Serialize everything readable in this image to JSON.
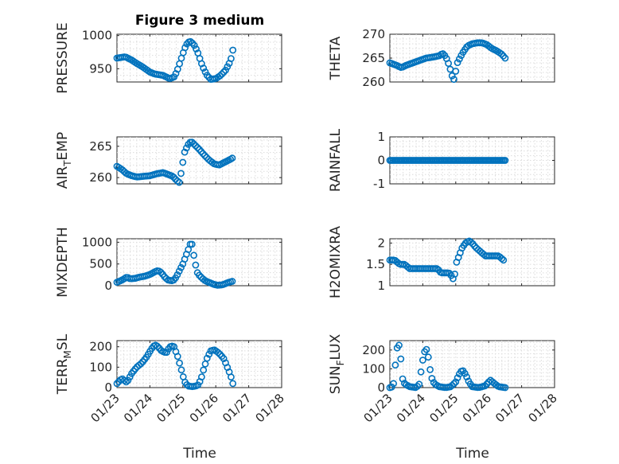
{
  "figure_title": "Figure 3 medium",
  "colors": {
    "marker": "#0072BD",
    "axis": "#262626",
    "grid": "#dcdcdc"
  },
  "chart_data": [
    {
      "type": "scatter",
      "id": "pressure",
      "ylabel": "PRESSURE",
      "ylim": [
        930,
        1002
      ],
      "yticks": [
        950,
        1000
      ],
      "ytick_labels": [
        "950",
        "1000"
      ],
      "xlim": [
        0,
        5
      ],
      "xticks": [
        0,
        1,
        2,
        3,
        4,
        5
      ],
      "xtick_labels": [],
      "curve": [
        [
          0.0,
          966
        ],
        [
          0.25,
          968
        ],
        [
          0.45,
          963
        ],
        [
          0.6,
          958
        ],
        [
          0.8,
          952
        ],
        [
          1.0,
          945
        ],
        [
          1.15,
          942
        ],
        [
          1.4,
          940
        ],
        [
          1.6,
          935
        ],
        [
          1.75,
          938
        ],
        [
          1.85,
          950
        ],
        [
          1.95,
          965
        ],
        [
          2.05,
          980
        ],
        [
          2.15,
          990
        ],
        [
          2.25,
          991
        ],
        [
          2.35,
          985
        ],
        [
          2.45,
          975
        ],
        [
          2.55,
          960
        ],
        [
          2.65,
          948
        ],
        [
          2.75,
          939
        ],
        [
          2.85,
          934
        ],
        [
          3.0,
          935
        ],
        [
          3.15,
          940
        ],
        [
          3.3,
          948
        ],
        [
          3.45,
          962
        ],
        [
          3.52,
          978
        ]
      ]
    },
    {
      "type": "scatter",
      "id": "theta",
      "ylabel": "THETA",
      "ylim": [
        260,
        270
      ],
      "yticks": [
        260,
        265,
        270
      ],
      "ytick_labels": [
        "260",
        "265",
        "270"
      ],
      "xlim": [
        0,
        5
      ],
      "xticks": [
        0,
        1,
        2,
        3,
        4,
        5
      ],
      "xtick_labels": [],
      "curve": [
        [
          0.0,
          264
        ],
        [
          0.2,
          263.5
        ],
        [
          0.35,
          263
        ],
        [
          0.5,
          263.5
        ],
        [
          0.7,
          264
        ],
        [
          0.9,
          264.5
        ],
        [
          1.1,
          265
        ],
        [
          1.3,
          265.2
        ],
        [
          1.5,
          265.5
        ],
        [
          1.6,
          266
        ],
        [
          1.7,
          265.3
        ],
        [
          1.8,
          263.5
        ],
        [
          1.9,
          261
        ],
        [
          1.95,
          260.5
        ],
        [
          2.05,
          264
        ],
        [
          2.2,
          266
        ],
        [
          2.35,
          267.5
        ],
        [
          2.5,
          268
        ],
        [
          2.65,
          268.2
        ],
        [
          2.8,
          268.2
        ],
        [
          2.95,
          267.8
        ],
        [
          3.1,
          267
        ],
        [
          3.25,
          266.5
        ],
        [
          3.4,
          265.8
        ],
        [
          3.5,
          265
        ]
      ]
    },
    {
      "type": "scatter",
      "id": "air_temp",
      "ylabel": "AIR_TEMP",
      "ylim": [
        259,
        266.5
      ],
      "yticks": [
        260,
        265
      ],
      "ytick_labels": [
        "260",
        "265"
      ],
      "xlim": [
        0,
        5
      ],
      "xticks": [
        0,
        1,
        2,
        3,
        4,
        5
      ],
      "xtick_labels": [],
      "curve": [
        [
          0.0,
          261.8
        ],
        [
          0.15,
          261.3
        ],
        [
          0.3,
          260.6
        ],
        [
          0.45,
          260.3
        ],
        [
          0.6,
          260.1
        ],
        [
          0.8,
          260.2
        ],
        [
          1.0,
          260.3
        ],
        [
          1.2,
          260.6
        ],
        [
          1.4,
          260.8
        ],
        [
          1.55,
          260.5
        ],
        [
          1.7,
          260.2
        ],
        [
          1.8,
          259.6
        ],
        [
          1.9,
          259.2
        ],
        [
          1.97,
          261.5
        ],
        [
          2.05,
          264
        ],
        [
          2.15,
          265.2
        ],
        [
          2.25,
          265.8
        ],
        [
          2.35,
          265.3
        ],
        [
          2.5,
          264.5
        ],
        [
          2.65,
          263.6
        ],
        [
          2.8,
          262.8
        ],
        [
          2.95,
          262.2
        ],
        [
          3.1,
          262
        ],
        [
          3.25,
          262.4
        ],
        [
          3.4,
          262.8
        ],
        [
          3.5,
          263.1
        ]
      ]
    },
    {
      "type": "scatter",
      "id": "rainfall",
      "ylabel": "RAINFALL",
      "ylim": [
        -1,
        1
      ],
      "yticks": [
        -1,
        0,
        1
      ],
      "ytick_labels": [
        "-1",
        "0",
        "1"
      ],
      "xlim": [
        0,
        5
      ],
      "xticks": [
        0,
        1,
        2,
        3,
        4,
        5
      ],
      "xtick_labels": [],
      "curve": [
        [
          0.0,
          0
        ],
        [
          3.5,
          0
        ]
      ]
    },
    {
      "type": "scatter",
      "id": "mixdepth",
      "ylabel": "MIXDEPTH",
      "ylim": [
        0,
        1080
      ],
      "yticks": [
        0,
        500,
        1000
      ],
      "ytick_labels": [
        "0",
        "500",
        "1000"
      ],
      "xlim": [
        0,
        5
      ],
      "xticks": [
        0,
        1,
        2,
        3,
        4,
        5
      ],
      "xtick_labels": [],
      "curve": [
        [
          0.0,
          80
        ],
        [
          0.1,
          110
        ],
        [
          0.2,
          150
        ],
        [
          0.3,
          200
        ],
        [
          0.4,
          160
        ],
        [
          0.55,
          170
        ],
        [
          0.7,
          200
        ],
        [
          0.85,
          220
        ],
        [
          1.0,
          260
        ],
        [
          1.15,
          320
        ],
        [
          1.25,
          350
        ],
        [
          1.35,
          300
        ],
        [
          1.45,
          200
        ],
        [
          1.55,
          130
        ],
        [
          1.7,
          110
        ],
        [
          1.8,
          200
        ],
        [
          1.9,
          350
        ],
        [
          2.0,
          500
        ],
        [
          2.1,
          700
        ],
        [
          2.2,
          900
        ],
        [
          2.25,
          1020
        ],
        [
          2.3,
          900
        ],
        [
          2.35,
          600
        ],
        [
          2.45,
          280
        ],
        [
          2.55,
          200
        ],
        [
          2.65,
          130
        ],
        [
          2.75,
          90
        ],
        [
          2.85,
          60
        ],
        [
          2.95,
          30
        ],
        [
          3.05,
          10
        ],
        [
          3.2,
          20
        ],
        [
          3.3,
          50
        ],
        [
          3.4,
          80
        ],
        [
          3.5,
          100
        ]
      ]
    },
    {
      "type": "scatter",
      "id": "h2omixra",
      "ylabel": "H2OMIXRA",
      "ylim": [
        1,
        2.1
      ],
      "yticks": [
        1,
        1.5,
        2
      ],
      "ytick_labels": [
        "1",
        "1.5",
        "2"
      ],
      "xlim": [
        0,
        5
      ],
      "xticks": [
        0,
        1,
        2,
        3,
        4,
        5
      ],
      "xtick_labels": [],
      "curve": [
        [
          0.0,
          1.6
        ],
        [
          0.15,
          1.6
        ],
        [
          0.3,
          1.5
        ],
        [
          0.45,
          1.5
        ],
        [
          0.6,
          1.4
        ],
        [
          0.9,
          1.4
        ],
        [
          1.2,
          1.4
        ],
        [
          1.45,
          1.4
        ],
        [
          1.55,
          1.3
        ],
        [
          1.8,
          1.3
        ],
        [
          1.9,
          1.2
        ],
        [
          1.95,
          1.1
        ],
        [
          2.0,
          1.5
        ],
        [
          2.1,
          1.7
        ],
        [
          2.2,
          1.9
        ],
        [
          2.3,
          2.0
        ],
        [
          2.4,
          2.05
        ],
        [
          2.5,
          2.0
        ],
        [
          2.6,
          1.9
        ],
        [
          2.75,
          1.8
        ],
        [
          2.9,
          1.7
        ],
        [
          3.1,
          1.7
        ],
        [
          3.3,
          1.7
        ],
        [
          3.45,
          1.6
        ]
      ]
    },
    {
      "type": "scatter",
      "id": "terr_msl",
      "ylabel": "TERR_MSL",
      "ylim": [
        0,
        230
      ],
      "yticks": [
        0,
        100,
        200
      ],
      "ytick_labels": [
        "0",
        "100",
        "200"
      ],
      "xlim": [
        0,
        5
      ],
      "xticks": [
        0,
        1,
        2,
        3,
        4,
        5
      ],
      "xtick_labels": [
        "01/23",
        "01/24",
        "01/25",
        "01/26",
        "01/27",
        "01/28"
      ],
      "curve": [
        [
          0.0,
          20
        ],
        [
          0.15,
          45
        ],
        [
          0.3,
          25
        ],
        [
          0.45,
          70
        ],
        [
          0.6,
          100
        ],
        [
          0.75,
          120
        ],
        [
          0.9,
          150
        ],
        [
          1.05,
          190
        ],
        [
          1.15,
          210
        ],
        [
          1.25,
          200
        ],
        [
          1.35,
          180
        ],
        [
          1.5,
          170
        ],
        [
          1.6,
          200
        ],
        [
          1.72,
          205
        ],
        [
          1.85,
          150
        ],
        [
          1.95,
          90
        ],
        [
          2.05,
          30
        ],
        [
          2.15,
          8
        ],
        [
          2.3,
          5
        ],
        [
          2.45,
          10
        ],
        [
          2.55,
          40
        ],
        [
          2.65,
          100
        ],
        [
          2.75,
          150
        ],
        [
          2.85,
          180
        ],
        [
          2.95,
          185
        ],
        [
          3.05,
          175
        ],
        [
          3.15,
          160
        ],
        [
          3.25,
          140
        ],
        [
          3.35,
          100
        ],
        [
          3.45,
          60
        ],
        [
          3.52,
          20
        ]
      ]
    },
    {
      "type": "scatter",
      "id": "sun_flux",
      "ylabel": "SUN_FLUX",
      "ylim": [
        0,
        250
      ],
      "yticks": [
        0,
        100,
        200
      ],
      "ytick_labels": [
        "0",
        "100",
        "200"
      ],
      "xlim": [
        0,
        5
      ],
      "xticks": [
        0,
        1,
        2,
        3,
        4,
        5
      ],
      "xtick_labels": [
        "01/23",
        "01/24",
        "01/25",
        "01/26",
        "01/27",
        "01/28"
      ],
      "curve": [
        [
          0.0,
          0
        ],
        [
          0.1,
          5
        ],
        [
          0.15,
          80
        ],
        [
          0.2,
          200
        ],
        [
          0.27,
          235
        ],
        [
          0.33,
          160
        ],
        [
          0.38,
          50
        ],
        [
          0.45,
          20
        ],
        [
          0.6,
          5
        ],
        [
          0.8,
          0
        ],
        [
          0.9,
          20
        ],
        [
          0.97,
          120
        ],
        [
          1.05,
          190
        ],
        [
          1.12,
          205
        ],
        [
          1.18,
          150
        ],
        [
          1.25,
          60
        ],
        [
          1.35,
          20
        ],
        [
          1.5,
          5
        ],
        [
          1.7,
          0
        ],
        [
          1.85,
          5
        ],
        [
          2.0,
          30
        ],
        [
          2.1,
          70
        ],
        [
          2.2,
          95
        ],
        [
          2.3,
          70
        ],
        [
          2.4,
          30
        ],
        [
          2.5,
          5
        ],
        [
          2.7,
          0
        ],
        [
          2.9,
          10
        ],
        [
          3.0,
          30
        ],
        [
          3.05,
          40
        ],
        [
          3.15,
          25
        ],
        [
          3.3,
          5
        ],
        [
          3.5,
          0
        ]
      ]
    }
  ],
  "xlabel": "Time"
}
